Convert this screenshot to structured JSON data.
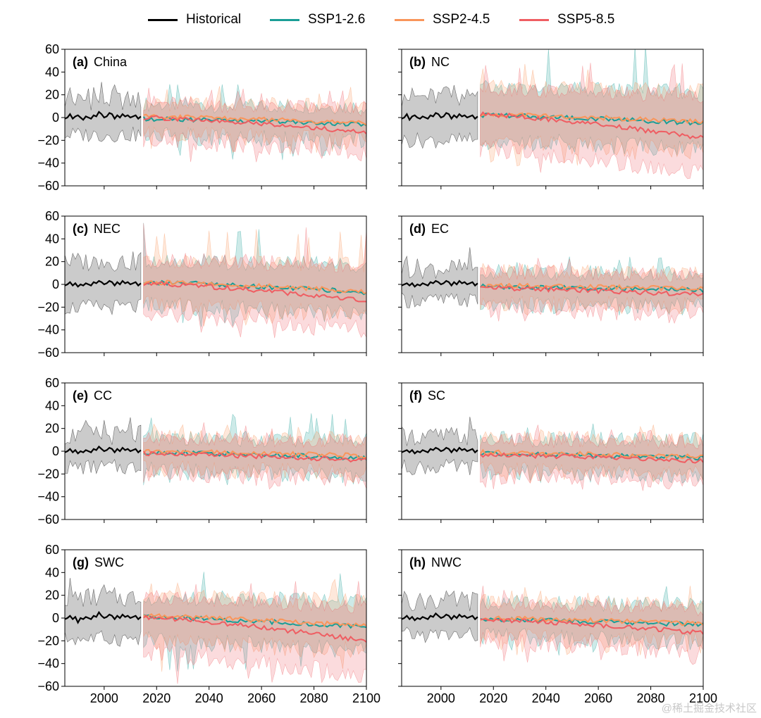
{
  "legend": [
    {
      "label": "Historical",
      "color": "#000000"
    },
    {
      "label": "SSP1-2.6",
      "color": "#1a9e96"
    },
    {
      "label": "SSP2-4.5",
      "color": "#f9955a"
    },
    {
      "label": "SSP5-8.5",
      "color": "#ef5d62"
    }
  ],
  "watermark": "@稀土掘金技术社区",
  "chart_data": {
    "type": "line",
    "xlim": [
      1985,
      2100
    ],
    "ylim": [
      -60,
      60
    ],
    "xticks": [
      2000,
      2020,
      2040,
      2060,
      2080,
      2100
    ],
    "yticks": [
      -60,
      -40,
      -20,
      0,
      20,
      40,
      60
    ],
    "xtick_labels": [
      "2000",
      "2020",
      "2040",
      "2060",
      "2080",
      "2100"
    ],
    "ytick_labels": [
      "−60",
      "−40",
      "−20",
      "0",
      "20",
      "40",
      "60"
    ],
    "historical_period": [
      1985,
      2014
    ],
    "future_period": [
      2015,
      2100
    ],
    "xlabel": "",
    "ylabel": "",
    "panels": [
      {
        "id": "(a)",
        "region": "China",
        "historical": {
          "line": [
            -1,
            0,
            3,
            -1,
            1,
            2,
            0,
            -2,
            1,
            0,
            -1,
            2,
            1,
            5,
            3,
            0,
            1,
            4,
            3,
            -1,
            2,
            0,
            3,
            1,
            2,
            0,
            1,
            2,
            -1,
            1
          ],
          "upper": 15,
          "lower": -15
        },
        "series": [
          {
            "name": "SSP1-2.6",
            "start": -1,
            "end": -6,
            "upper": 12,
            "lower": -15,
            "peak_up": 33,
            "peak_low": -35
          },
          {
            "name": "SSP2-4.5",
            "start": 1,
            "end": -5,
            "upper": 12,
            "lower": -15,
            "peak_up": 25,
            "peak_low": -30
          },
          {
            "name": "SSP5-8.5",
            "start": 0,
            "end": -13,
            "upper": 13,
            "lower": -18,
            "peak_up": 25,
            "peak_low": -38
          }
        ]
      },
      {
        "id": "(b)",
        "region": "NC",
        "historical": {
          "line": [
            -1,
            0,
            3,
            -2,
            1,
            2,
            0,
            -1,
            1,
            0,
            -1,
            2,
            1,
            4,
            3,
            0,
            1,
            4,
            3,
            -1,
            2,
            0,
            3,
            1,
            2,
            0,
            1,
            2,
            -1,
            1
          ],
          "upper": 18,
          "lower": -20
        },
        "series": [
          {
            "name": "SSP1-2.6",
            "start": 2,
            "end": -5,
            "upper": 25,
            "lower": -22,
            "peak_up": 60,
            "peak_low": -40
          },
          {
            "name": "SSP2-4.5",
            "start": 3,
            "end": -4,
            "upper": 25,
            "lower": -25,
            "peak_up": 45,
            "peak_low": -40
          },
          {
            "name": "SSP5-8.5",
            "start": 3,
            "end": -18,
            "upper": 25,
            "lower": -30,
            "peak_up": 45,
            "peak_low": -48
          }
        ]
      },
      {
        "id": "(c)",
        "region": "NEC",
        "historical": {
          "line": [
            -1,
            0,
            2,
            -1,
            1,
            -2,
            0,
            -1,
            1,
            0,
            -1,
            2,
            1,
            3,
            2,
            0,
            1,
            3,
            2,
            -1,
            2,
            0,
            3,
            1,
            2,
            0,
            1,
            2,
            -1,
            1
          ],
          "upper": 20,
          "lower": -20
        },
        "series": [
          {
            "name": "SSP1-2.6",
            "start": 2,
            "end": -7,
            "upper": 20,
            "lower": -20,
            "peak_up": 50,
            "peak_low": -35
          },
          {
            "name": "SSP2-4.5",
            "start": 2,
            "end": -6,
            "upper": 20,
            "lower": -20,
            "peak_up": 45,
            "peak_low": -35
          },
          {
            "name": "SSP5-8.5",
            "start": 1,
            "end": -14,
            "upper": 22,
            "lower": -25,
            "peak_up": 50,
            "peak_low": -45
          }
        ]
      },
      {
        "id": "(d)",
        "region": "EC",
        "historical": {
          "line": [
            -1,
            0,
            1,
            -1,
            1,
            -2,
            0,
            -1,
            1,
            0,
            -1,
            2,
            1,
            3,
            2,
            0,
            1,
            3,
            2,
            -1,
            2,
            0,
            3,
            1,
            2,
            0,
            1,
            2,
            -1,
            1
          ],
          "upper": 14,
          "lower": -14
        },
        "series": [
          {
            "name": "SSP1-2.6",
            "start": -2,
            "end": -5,
            "upper": 12,
            "lower": -15,
            "peak_up": 22,
            "peak_low": -25
          },
          {
            "name": "SSP2-4.5",
            "start": -1,
            "end": -4,
            "upper": 12,
            "lower": -15,
            "peak_up": 20,
            "peak_low": -25
          },
          {
            "name": "SSP5-8.5",
            "start": -3,
            "end": -9,
            "upper": 12,
            "lower": -18,
            "peak_up": 20,
            "peak_low": -32
          }
        ]
      },
      {
        "id": "(e)",
        "region": "CC",
        "historical": {
          "line": [
            -1,
            0,
            2,
            -1,
            1,
            -2,
            0,
            -1,
            1,
            0,
            -1,
            2,
            1,
            4,
            2,
            0,
            1,
            3,
            2,
            -1,
            2,
            0,
            3,
            1,
            2,
            0,
            1,
            2,
            -1,
            1
          ],
          "upper": 14,
          "lower": -14
        },
        "series": [
          {
            "name": "SSP1-2.6",
            "start": -1,
            "end": -6,
            "upper": 12,
            "lower": -16,
            "peak_up": 30,
            "peak_low": -27
          },
          {
            "name": "SSP2-4.5",
            "start": 0,
            "end": -4,
            "upper": 12,
            "lower": -15,
            "peak_up": 22,
            "peak_low": -25
          },
          {
            "name": "SSP5-8.5",
            "start": -2,
            "end": -8,
            "upper": 12,
            "lower": -18,
            "peak_up": 22,
            "peak_low": -32
          }
        ]
      },
      {
        "id": "(f)",
        "region": "SC",
        "historical": {
          "line": [
            -1,
            0,
            1,
            -1,
            1,
            -2,
            0,
            -1,
            1,
            0,
            -1,
            2,
            1,
            3,
            2,
            0,
            1,
            3,
            2,
            -1,
            2,
            0,
            3,
            1,
            2,
            0,
            1,
            2,
            -1,
            1
          ],
          "upper": 13,
          "lower": -14
        },
        "series": [
          {
            "name": "SSP1-2.6",
            "start": -2,
            "end": -6,
            "upper": 12,
            "lower": -15,
            "peak_up": 22,
            "peak_low": -25
          },
          {
            "name": "SSP2-4.5",
            "start": -1,
            "end": -5,
            "upper": 12,
            "lower": -15,
            "peak_up": 20,
            "peak_low": -25
          },
          {
            "name": "SSP5-8.5",
            "start": -3,
            "end": -9,
            "upper": 12,
            "lower": -18,
            "peak_up": 20,
            "peak_low": -32
          }
        ]
      },
      {
        "id": "(g)",
        "region": "SWC",
        "historical": {
          "line": [
            -1,
            0,
            2,
            -1,
            1,
            -4,
            0,
            -1,
            1,
            0,
            -1,
            2,
            1,
            5,
            2,
            0,
            1,
            3,
            2,
            -1,
            2,
            0,
            3,
            1,
            2,
            0,
            1,
            2,
            -1,
            1
          ],
          "upper": 18,
          "lower": -18
        },
        "series": [
          {
            "name": "SSP1-2.6",
            "start": 1,
            "end": -8,
            "upper": 18,
            "lower": -20,
            "peak_up": 40,
            "peak_low": -45
          },
          {
            "name": "SSP2-4.5",
            "start": 2,
            "end": -7,
            "upper": 18,
            "lower": -22,
            "peak_up": 30,
            "peak_low": -45
          },
          {
            "name": "SSP5-8.5",
            "start": 1,
            "end": -20,
            "upper": 18,
            "lower": -30,
            "peak_up": 30,
            "peak_low": -55
          }
        ]
      },
      {
        "id": "(h)",
        "region": "NWC",
        "historical": {
          "line": [
            -1,
            0,
            2,
            -1,
            1,
            -2,
            0,
            -1,
            1,
            0,
            -1,
            2,
            1,
            4,
            2,
            0,
            1,
            3,
            2,
            -1,
            2,
            0,
            3,
            1,
            2,
            0,
            1,
            2,
            -1,
            1
          ],
          "upper": 15,
          "lower": -15
        },
        "series": [
          {
            "name": "SSP1-2.6",
            "start": -1,
            "end": -6,
            "upper": 14,
            "lower": -15,
            "peak_up": 28,
            "peak_low": -30
          },
          {
            "name": "SSP2-4.5",
            "start": 0,
            "end": -5,
            "upper": 14,
            "lower": -15,
            "peak_up": 25,
            "peak_low": -30
          },
          {
            "name": "SSP5-8.5",
            "start": -1,
            "end": -13,
            "upper": 14,
            "lower": -18,
            "peak_up": 25,
            "peak_low": -38
          }
        ]
      }
    ]
  }
}
